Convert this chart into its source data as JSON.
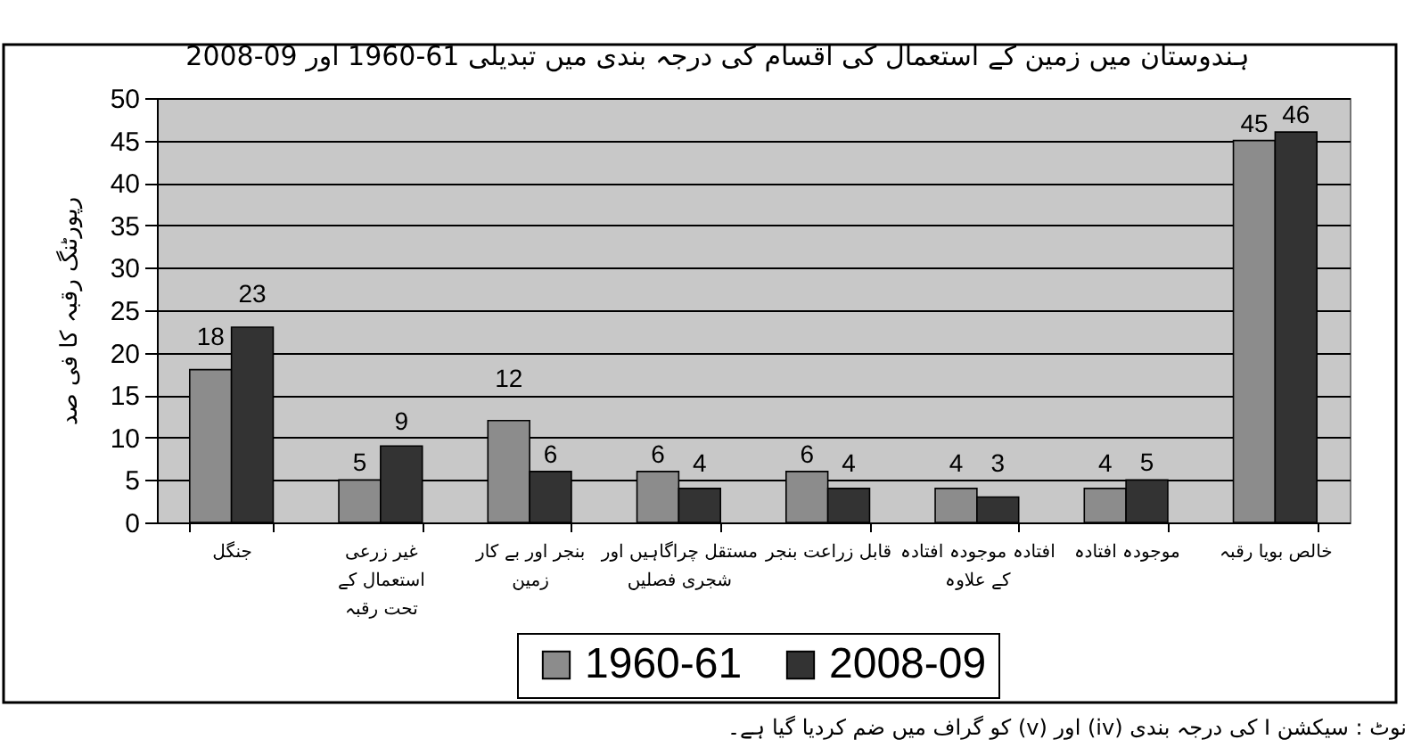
{
  "chart_data": {
    "type": "bar",
    "title": "ہندوستان میں زمین کے استعمال کی اقسام کی درجہ بندی میں تبدیلی 1960-61 اور 2008-09",
    "ylabel": "رپورٹنگ رقبہ کا فی صد",
    "categories": [
      "جنگل",
      "غیر زرعی\nاستعمال کے\nتحت رقبہ",
      "بنجر اور بے کار\nزمین",
      "مستقل چراگاہیں اور\nشجری فصلیں",
      "قابل زراعت بنجر",
      "افتادہ موجودہ افتادہ\nکے علاوہ",
      "موجودہ افتادہ",
      "خالص بویا رقبہ"
    ],
    "series": [
      {
        "name": "1960-61",
        "color": "#8c8c8c",
        "values": [
          18,
          5,
          12,
          6,
          6,
          4,
          4,
          45
        ]
      },
      {
        "name": "2008-09",
        "color": "#333333",
        "values": [
          23,
          9,
          6,
          4,
          4,
          3,
          5,
          46
        ]
      }
    ],
    "ylim": [
      0,
      50
    ],
    "yticks": [
      0,
      5,
      10,
      15,
      20,
      25,
      30,
      35,
      40,
      45,
      50
    ],
    "grid": "y",
    "legend": "bottom",
    "data_labels": true,
    "annotations": [
      "نوٹ : سیکشن I کی درجہ بندی (iv) اور (v) کو گراف میں ضم کردیا گیا ہے۔"
    ]
  }
}
